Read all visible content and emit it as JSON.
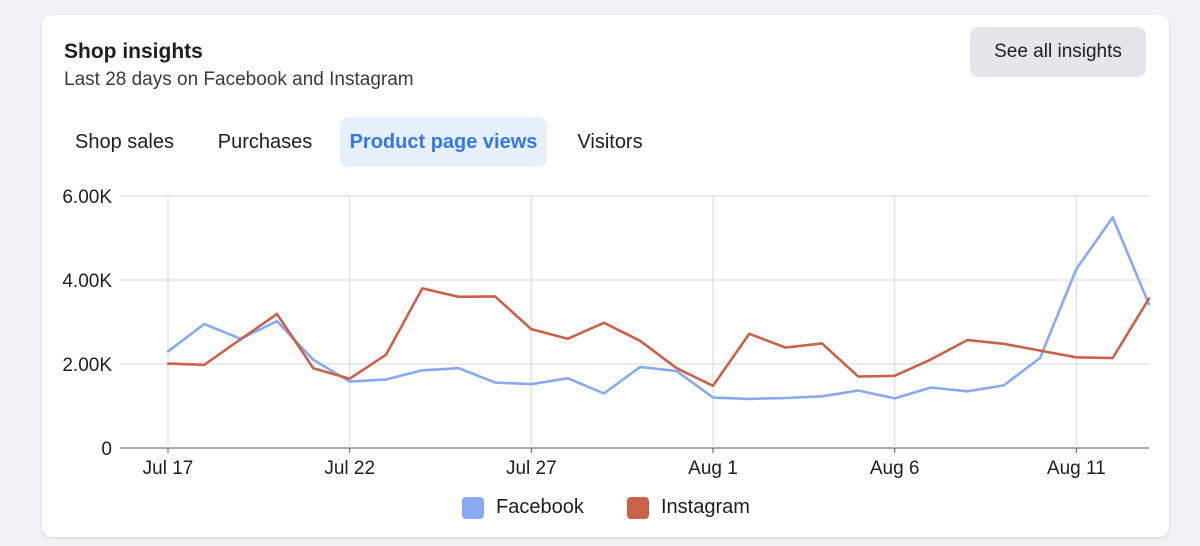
{
  "header": {
    "title": "Shop insights",
    "subtitle": "Last 28 days on Facebook and Instagram",
    "see_all_label": "See all insights"
  },
  "tabs": [
    {
      "label": "Shop sales",
      "active": false
    },
    {
      "label": "Purchases",
      "active": false
    },
    {
      "label": "Product page views",
      "active": true
    },
    {
      "label": "Visitors",
      "active": false
    }
  ],
  "colors": {
    "facebook": "#89a9f0",
    "instagram": "#c9624b",
    "grid": "#d9d9d9",
    "active_tab": "#3578e5"
  },
  "chart_data": {
    "type": "line",
    "categories": [
      "Jul 17",
      "Jul 18",
      "Jul 19",
      "Jul 20",
      "Jul 21",
      "Jul 22",
      "Jul 23",
      "Jul 24",
      "Jul 25",
      "Jul 26",
      "Jul 27",
      "Jul 28",
      "Jul 29",
      "Jul 30",
      "Jul 31",
      "Aug 1",
      "Aug 2",
      "Aug 3",
      "Aug 4",
      "Aug 5",
      "Aug 6",
      "Aug 7",
      "Aug 8",
      "Aug 9",
      "Aug 10",
      "Aug 11",
      "Aug 12",
      "Aug 13"
    ],
    "x_tick_labels": [
      "Jul 17",
      "Jul 22",
      "Jul 27",
      "Aug 1",
      "Aug 6",
      "Aug 11"
    ],
    "y_tick_labels": [
      "0",
      "2.00K",
      "4.00K",
      "6.00K"
    ],
    "ylim": [
      0,
      6000
    ],
    "grid": true,
    "legend_position": "bottom",
    "series": [
      {
        "name": "Facebook",
        "values": [
          2300,
          2950,
          2600,
          3020,
          2100,
          1580,
          1630,
          1850,
          1900,
          1560,
          1520,
          1660,
          1300,
          1930,
          1830,
          1200,
          1170,
          1190,
          1230,
          1370,
          1180,
          1440,
          1350,
          1490,
          2140,
          4260,
          5490,
          3420
        ]
      },
      {
        "name": "Instagram",
        "values": [
          2010,
          1980,
          2590,
          3190,
          1900,
          1650,
          2220,
          3800,
          3600,
          3610,
          2830,
          2600,
          2980,
          2550,
          1900,
          1480,
          2720,
          2390,
          2490,
          1700,
          1720,
          2110,
          2570,
          2480,
          2320,
          2160,
          2140,
          3560
        ]
      }
    ]
  }
}
